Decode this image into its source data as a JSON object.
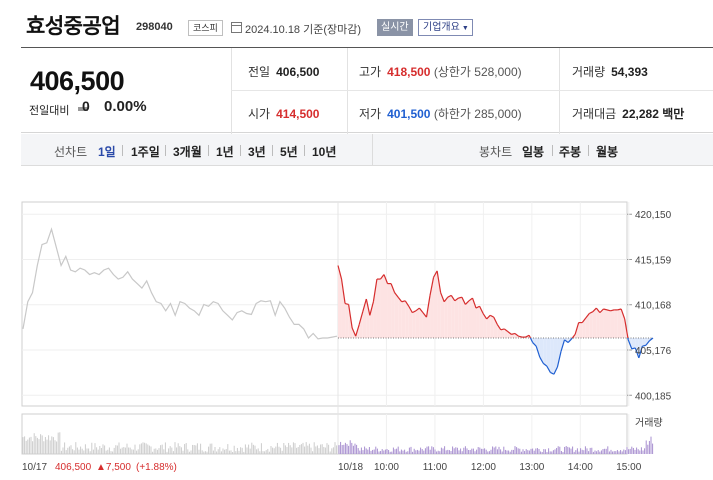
{
  "header": {
    "stock_name": "효성중공업",
    "stock_code": "298040",
    "market": "코스피",
    "date_text": "2024.10.18 기준(장마감)",
    "realtime_label": "실시간",
    "company_overview_label": "기업개요"
  },
  "summary": {
    "current_price": "406,500",
    "change_label": "전일대비",
    "change_value": "0",
    "change_rate": "0.00%",
    "prev_close_label": "전일",
    "prev_close": "406,500",
    "high_label": "고가",
    "high": "418,500",
    "upper_limit_label": "(상한가 528,000)",
    "volume_label": "거래량",
    "volume": "54,393",
    "open_label": "시가",
    "open": "414,500",
    "low_label": "저가",
    "low": "401,500",
    "lower_limit_label": "(하한가 285,000)",
    "amount_label": "거래대금",
    "amount": "22,282 백만"
  },
  "toolbar": {
    "line_chart_label": "선차트",
    "periods": [
      "1일",
      "1주일",
      "3개월",
      "1년",
      "3년",
      "5년",
      "10년"
    ],
    "active_period": "1일",
    "candle_chart_label": "봉차트",
    "candle_periods": [
      "일봉",
      "주봉",
      "월봉"
    ]
  },
  "chart": {
    "y_ticks": [
      "420,150",
      "415,159",
      "410,168",
      "405,176",
      "400,185"
    ],
    "volume_label": "거래량",
    "x_labels": [
      "10/17",
      "10/18",
      "10:00",
      "11:00",
      "12:00",
      "13:00",
      "14:00",
      "15:00"
    ],
    "prev_close_text": "406,500",
    "prev_change_text": "▲7,500",
    "prev_change_rate_text": "(+1.88%)"
  },
  "colors": {
    "up": "#d62d2d",
    "down": "#1f5fd1",
    "prev_day_line": "#c8c8c8",
    "fill_up": "#fde3e3",
    "fill_down": "#dde8fb"
  },
  "chart_data": {
    "type": "line",
    "title": "",
    "xlabel": "",
    "ylabel": "",
    "ylim": [
      399000,
      421500
    ],
    "reference_price": 406500,
    "series": [
      {
        "name": "",
        "day": "10/17",
        "values": [
          407500,
          410500,
          411500,
          414500,
          416800,
          417000,
          418500,
          416500,
          414500,
          415500,
          414000,
          413800,
          414200,
          414000,
          413500,
          413700,
          413500,
          414000,
          414200,
          413500,
          413000,
          413200,
          413800,
          413000,
          412500,
          412000,
          412800,
          411500,
          410500,
          410300,
          409500,
          410300,
          409000,
          410500,
          410300,
          409800,
          409500,
          409000,
          410200,
          410000,
          410500,
          410300,
          409500,
          409000,
          408500,
          409300,
          409500,
          409200,
          409100,
          410300,
          410600,
          410500,
          410600,
          409000,
          410500,
          409800,
          408800,
          408000,
          408000,
          407500,
          406500,
          407000,
          406400,
          406500,
          406500,
          406600,
          406700
        ]
      },
      {
        "name": "",
        "day": "10/18",
        "values": [
          414500,
          413000,
          410300,
          410200,
          407600,
          406700,
          408000,
          409400,
          410800,
          409000,
          410500,
          413000,
          413000,
          413500,
          412500,
          412500,
          411500,
          411000,
          410500,
          410600,
          410000,
          409300,
          409500,
          409800,
          409300,
          408800,
          411200,
          413200,
          413900,
          411500,
          410500,
          411000,
          411200,
          410600,
          410900,
          411000,
          410200,
          410600,
          410900,
          409800,
          410000,
          409200,
          408600,
          409000,
          408800,
          408000,
          407400,
          407500,
          407200,
          406900,
          407000,
          406700,
          406600,
          406600,
          406800,
          406000,
          405600,
          404400,
          403700,
          403400,
          402700,
          402500,
          403300,
          405000,
          406300,
          406000,
          406400,
          406900,
          408200,
          408200,
          408700,
          409200,
          409400,
          409800,
          409300,
          409700,
          409600,
          409500,
          409600,
          409600,
          409700,
          408600,
          406300,
          405300,
          405400,
          404300,
          405600,
          405700,
          406200,
          406500
        ]
      }
    ]
  }
}
